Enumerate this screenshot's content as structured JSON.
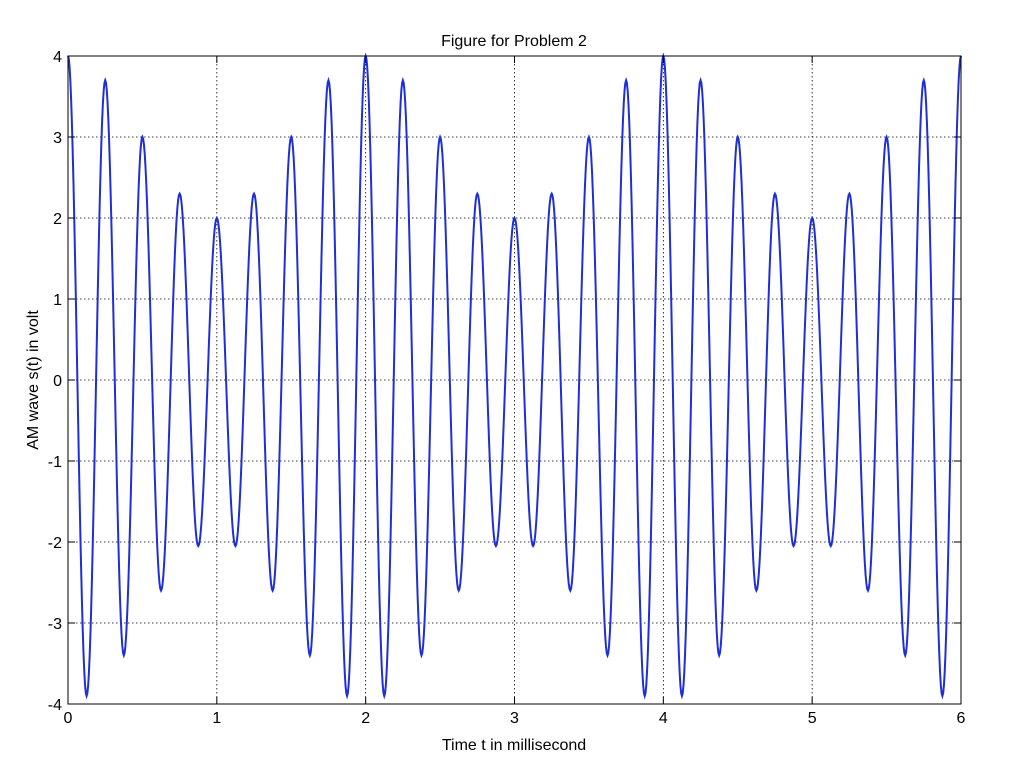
{
  "chart_data": {
    "type": "line",
    "title": "Figure for Problem 2",
    "xlabel": "Time t in millisecond",
    "ylabel": "AM wave s(t) in volt",
    "xlim": [
      0,
      6
    ],
    "ylim": [
      -4,
      4
    ],
    "x_ticks": [
      "0",
      "1",
      "2",
      "3",
      "4",
      "5",
      "6"
    ],
    "y_ticks": [
      "-4",
      "-3",
      "-2",
      "-1",
      "0",
      "1",
      "2",
      "3",
      "4"
    ],
    "grid": true,
    "line_color": "#1f2fd8",
    "series": [
      {
        "name": "",
        "x_ms": [
          0.0,
          0.125,
          0.25,
          0.375,
          0.5,
          0.625,
          0.75,
          0.875,
          1.0,
          1.125,
          1.25,
          1.375,
          1.5,
          1.625,
          1.75,
          1.875,
          2.0,
          2.125,
          2.25,
          2.375,
          2.5,
          2.625,
          2.75,
          2.875,
          3.0,
          3.125,
          3.25,
          3.375,
          3.5,
          3.625,
          3.75,
          3.875,
          4.0,
          4.125,
          4.25,
          4.375,
          4.5,
          4.625,
          4.75,
          4.875,
          5.0,
          5.125,
          5.25,
          5.375,
          5.5,
          5.625,
          5.75,
          5.875,
          6.0
        ],
        "values": [
          4.0,
          -3.9,
          3.7,
          -3.4,
          3.0,
          -2.6,
          2.3,
          -2.05,
          2.0,
          -2.05,
          2.3,
          -2.6,
          3.0,
          -3.4,
          3.7,
          -3.9,
          4.0,
          -3.9,
          3.7,
          -3.4,
          3.0,
          -2.6,
          2.3,
          -2.05,
          2.0,
          -2.05,
          2.3,
          -2.6,
          3.0,
          -3.4,
          3.7,
          -3.9,
          4.0,
          -3.9,
          3.7,
          -3.4,
          3.0,
          -2.6,
          2.3,
          -2.05,
          2.0,
          -2.05,
          2.3,
          -2.6,
          3.0,
          -3.4,
          3.7,
          -3.9,
          4.0
        ]
      }
    ]
  }
}
